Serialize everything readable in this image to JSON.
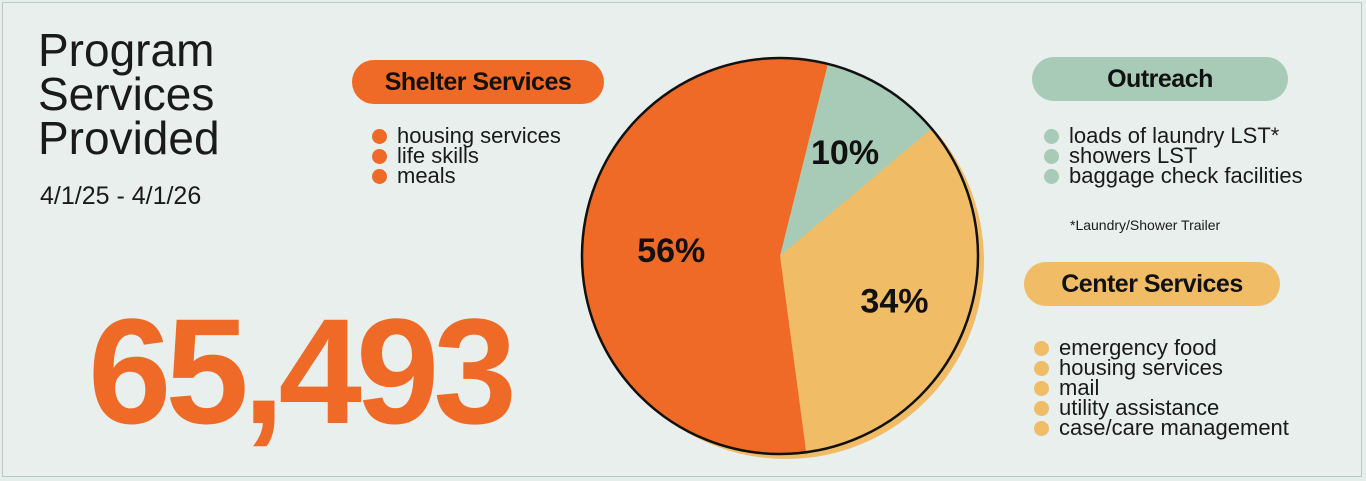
{
  "header": {
    "title_lines": [
      "Program",
      "Services",
      "Provided"
    ],
    "date_range": "4/1/25 - 4/1/26",
    "total": "65,493"
  },
  "groups": {
    "shelter": {
      "label": "Shelter Services",
      "color": "#ef6a26",
      "items": [
        "housing services",
        "life skills",
        "meals"
      ]
    },
    "outreach": {
      "label": "Outreach",
      "color": "#a8cbb8",
      "items": [
        "loads of laundry LST*",
        "showers LST",
        "baggage check facilities"
      ],
      "footnote": "*Laundry/Shower Trailer"
    },
    "center": {
      "label": "Center Services",
      "color": "#f0bc66",
      "items": [
        "emergency food",
        "housing services",
        "mail",
        "utility assistance",
        "case/care management"
      ]
    }
  },
  "chart_data": {
    "type": "pie",
    "title": "",
    "slices": [
      {
        "label": "Outreach",
        "value": 10,
        "display": "10%",
        "color": "#a8cbb8"
      },
      {
        "label": "Center Services",
        "value": 34,
        "display": "34%",
        "color": "#f0bc66"
      },
      {
        "label": "Shelter Services",
        "value": 56,
        "display": "56%",
        "color": "#ef6a26"
      }
    ]
  }
}
